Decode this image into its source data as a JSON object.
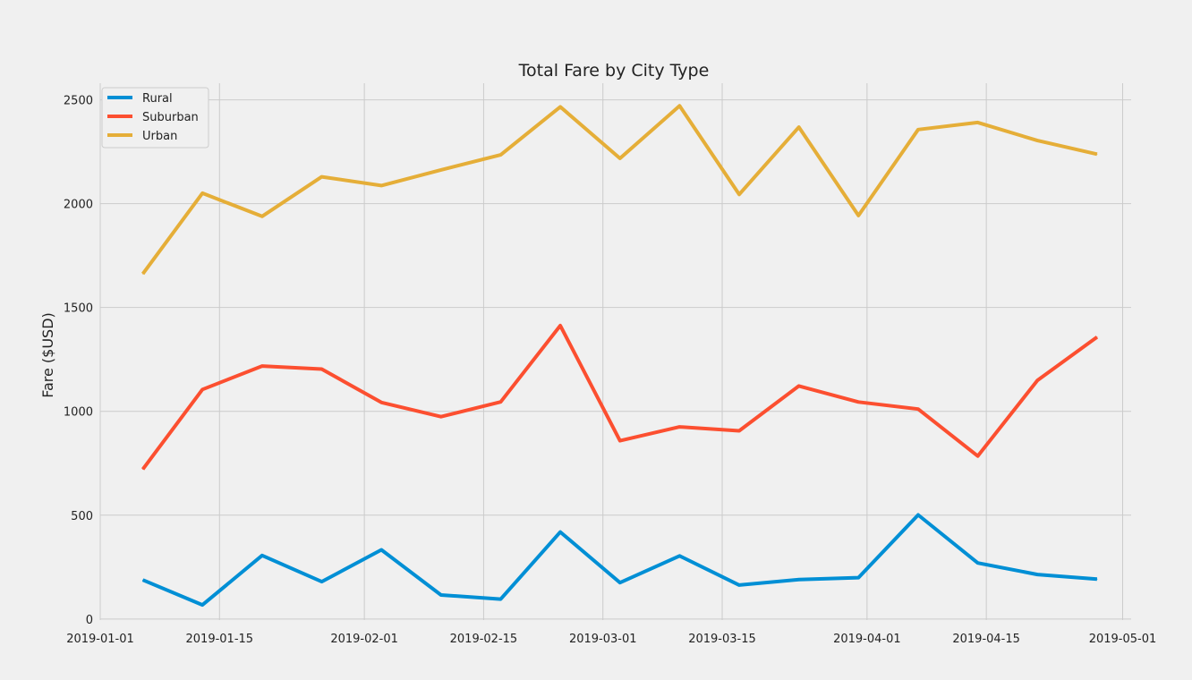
{
  "chart_data": {
    "type": "line",
    "title": "Total Fare by City Type",
    "xlabel": "",
    "ylabel": "Fare ($USD)",
    "x": [
      "2019-01-06",
      "2019-01-13",
      "2019-01-20",
      "2019-01-27",
      "2019-02-03",
      "2019-02-10",
      "2019-02-17",
      "2019-02-24",
      "2019-03-03",
      "2019-03-10",
      "2019-03-17",
      "2019-03-24",
      "2019-03-31",
      "2019-04-07",
      "2019-04-14",
      "2019-04-21",
      "2019-04-28"
    ],
    "x_ticks": [
      "2019-01-01",
      "2019-01-15",
      "2019-02-01",
      "2019-02-15",
      "2019-03-01",
      "2019-03-15",
      "2019-04-01",
      "2019-04-15",
      "2019-05-01"
    ],
    "xlim": [
      "2019-01-01",
      "2019-05-02"
    ],
    "y_ticks": [
      0,
      500,
      1000,
      1500,
      2000,
      2500
    ],
    "ylim": [
      -5,
      2580
    ],
    "grid": true,
    "legend_position": "top-left",
    "series": [
      {
        "name": "Rural",
        "color": "#008fd5",
        "values": [
          187.92,
          67.65,
          306.0,
          179.69,
          333.08,
          115.8,
          95.82,
          419.06,
          175.14,
          303.94,
          163.39,
          189.76,
          199.42,
          501.24,
          269.79,
          214.14,
          191.85
        ]
      },
      {
        "name": "Suburban",
        "color": "#fc4f30",
        "values": [
          721.6,
          1105.13,
          1218.2,
          1203.28,
          1042.79,
          974.34,
          1045.5,
          1412.74,
          858.46,
          925.27,
          906.2,
          1122.2,
          1045.06,
          1010.73,
          784.82,
          1149.27,
          1357.75
        ]
      },
      {
        "name": "Urban",
        "color": "#e5ae38",
        "values": [
          1661.68,
          2050.43,
          1939.02,
          2129.51,
          2086.94,
          2162.64,
          2235.07,
          2466.29,
          2218.2,
          2470.93,
          2044.42,
          2368.37,
          1942.77,
          2356.7,
          2390.72,
          2303.8,
          2238.29
        ]
      }
    ]
  }
}
